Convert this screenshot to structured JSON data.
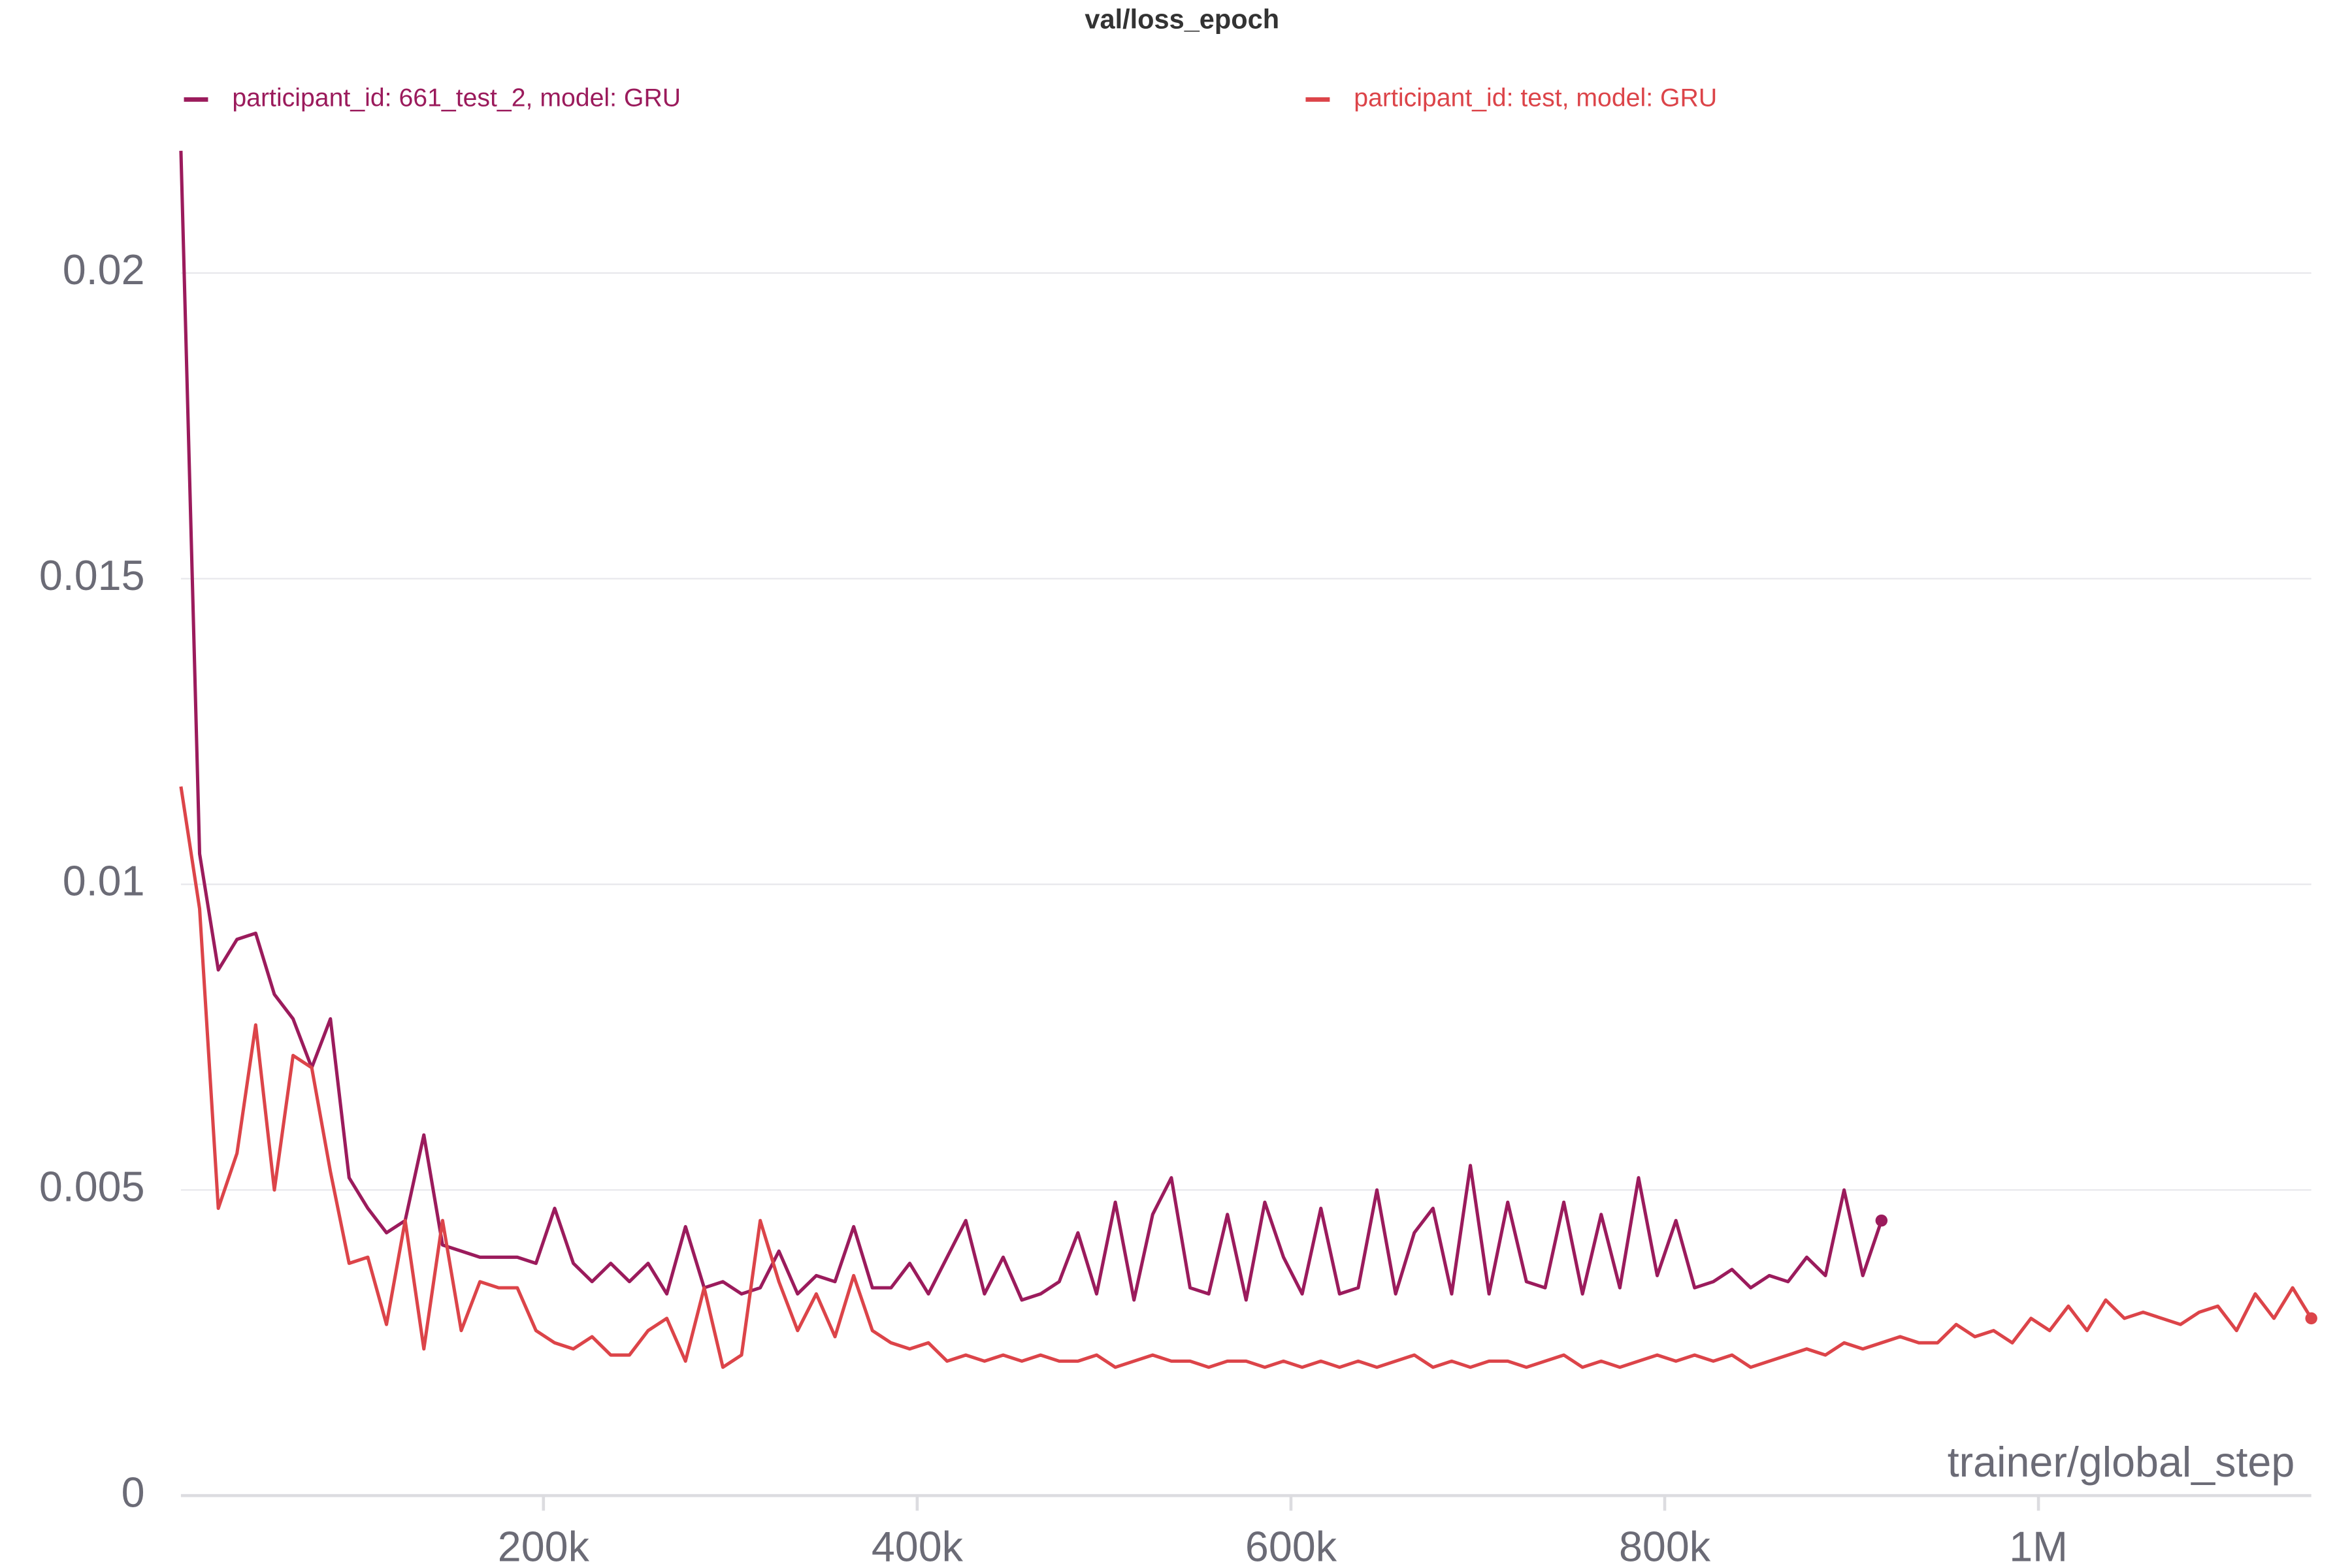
{
  "chart_data": {
    "type": "line",
    "title": "val/loss_epoch",
    "x_label": "trainer/global_step",
    "legend_position": "top",
    "grid": true,
    "x": [
      6000,
      16000,
      26000,
      36000,
      46000,
      56000,
      66000,
      76000,
      86000,
      96000,
      106000,
      116000,
      126000,
      136000,
      146000,
      156000,
      166000,
      176000,
      186000,
      196000,
      206000,
      216000,
      226000,
      236000,
      246000,
      256000,
      266000,
      276000,
      286000,
      296000,
      306000,
      316000,
      326000,
      336000,
      346000,
      356000,
      366000,
      376000,
      386000,
      396000,
      406000,
      416000,
      426000,
      436000,
      446000,
      456000,
      466000,
      476000,
      486000,
      496000,
      506000,
      516000,
      526000,
      536000,
      546000,
      556000,
      566000,
      576000,
      586000,
      596000,
      606000,
      616000,
      626000,
      636000,
      646000,
      656000,
      666000,
      676000,
      686000,
      696000,
      706000,
      716000,
      726000,
      736000,
      746000,
      756000,
      766000,
      776000,
      786000,
      796000,
      806000,
      816000,
      826000,
      836000,
      846000,
      856000,
      866000,
      876000,
      886000,
      896000,
      906000,
      916000,
      926000,
      936000,
      946000,
      956000,
      966000,
      976000,
      986000,
      996000,
      1006000,
      1016000,
      1026000,
      1036000,
      1046000,
      1056000,
      1066000,
      1076000,
      1086000,
      1096000,
      1106000,
      1116000,
      1126000,
      1136000,
      1146000
    ],
    "series": [
      {
        "name": "participant_id: 661_test_2, model: GRU",
        "color": "#9b1b5c",
        "values": [
          0.022,
          0.0105,
          0.0086,
          0.0091,
          0.0092,
          0.0082,
          0.0078,
          0.007,
          0.0078,
          0.0052,
          0.0047,
          0.0043,
          0.0045,
          0.0059,
          0.0041,
          0.004,
          0.0039,
          0.0039,
          0.0039,
          0.0038,
          0.0047,
          0.0038,
          0.0035,
          0.0038,
          0.0035,
          0.0038,
          0.0033,
          0.0044,
          0.0034,
          0.0035,
          0.0033,
          0.0034,
          0.004,
          0.0033,
          0.0036,
          0.0035,
          0.0044,
          0.0034,
          0.0034,
          0.0038,
          0.0033,
          0.0039,
          0.0045,
          0.0033,
          0.0039,
          0.0032,
          0.0033,
          0.0035,
          0.0043,
          0.0033,
          0.0048,
          0.0032,
          0.0046,
          0.0052,
          0.0034,
          0.0033,
          0.0046,
          0.0032,
          0.0048,
          0.0039,
          0.0033,
          0.0047,
          0.0033,
          0.0034,
          0.005,
          0.0033,
          0.0043,
          0.0047,
          0.0033,
          0.0054,
          0.0033,
          0.0048,
          0.0035,
          0.0034,
          0.0048,
          0.0033,
          0.0046,
          0.0034,
          0.0052,
          0.0036,
          0.0045,
          0.0034,
          0.0035,
          0.0037,
          0.0034,
          0.0036,
          0.0035,
          0.0039,
          0.0036,
          0.005,
          0.0036,
          0.0045,
          null,
          null,
          null,
          null,
          null,
          null,
          null,
          null,
          null,
          null,
          null,
          null,
          null,
          null,
          null,
          null,
          null,
          null,
          null,
          null,
          null,
          null,
          null
        ]
      },
      {
        "name": "participant_id: test, model: GRU",
        "color": "#dc4449",
        "values": [
          0.0116,
          0.0096,
          0.0047,
          0.0056,
          0.0077,
          0.005,
          0.0072,
          0.007,
          0.0053,
          0.0038,
          0.0039,
          0.0028,
          0.0045,
          0.0024,
          0.0045,
          0.0027,
          0.0035,
          0.0034,
          0.0034,
          0.0027,
          0.0025,
          0.0024,
          0.0026,
          0.0023,
          0.0023,
          0.0027,
          0.0029,
          0.0022,
          0.0034,
          0.0021,
          0.0023,
          0.0045,
          0.0035,
          0.0027,
          0.0033,
          0.0026,
          0.0036,
          0.0027,
          0.0025,
          0.0024,
          0.0025,
          0.0022,
          0.0023,
          0.0022,
          0.0023,
          0.0022,
          0.0023,
          0.0022,
          0.0022,
          0.0023,
          0.0021,
          0.0022,
          0.0023,
          0.0022,
          0.0022,
          0.0021,
          0.0022,
          0.0022,
          0.0021,
          0.0022,
          0.0021,
          0.0022,
          0.0021,
          0.0022,
          0.0021,
          0.0022,
          0.0023,
          0.0021,
          0.0022,
          0.0021,
          0.0022,
          0.0022,
          0.0021,
          0.0022,
          0.0023,
          0.0021,
          0.0022,
          0.0021,
          0.0022,
          0.0023,
          0.0022,
          0.0023,
          0.0022,
          0.0023,
          0.0021,
          0.0022,
          0.0023,
          0.0024,
          0.0023,
          0.0025,
          0.0024,
          0.0025,
          0.0026,
          0.0025,
          0.0025,
          0.0028,
          0.0026,
          0.0027,
          0.0025,
          0.0029,
          0.0027,
          0.0031,
          0.0027,
          0.0032,
          0.0029,
          0.003,
          0.0029,
          0.0028,
          0.003,
          0.0031,
          0.0027,
          0.0033,
          0.0029,
          0.0034,
          0.0029
        ]
      }
    ],
    "xlim": [
      6000,
      1146000
    ],
    "ylim": [
      0,
      0.022
    ],
    "xticks": [
      {
        "value": 200000,
        "label": "200k"
      },
      {
        "value": 400000,
        "label": "400k"
      },
      {
        "value": 600000,
        "label": "600k"
      },
      {
        "value": 800000,
        "label": "800k"
      },
      {
        "value": 1000000,
        "label": "1M"
      }
    ],
    "yticks": [
      0,
      0.005,
      0.01,
      0.015,
      0.02
    ]
  }
}
